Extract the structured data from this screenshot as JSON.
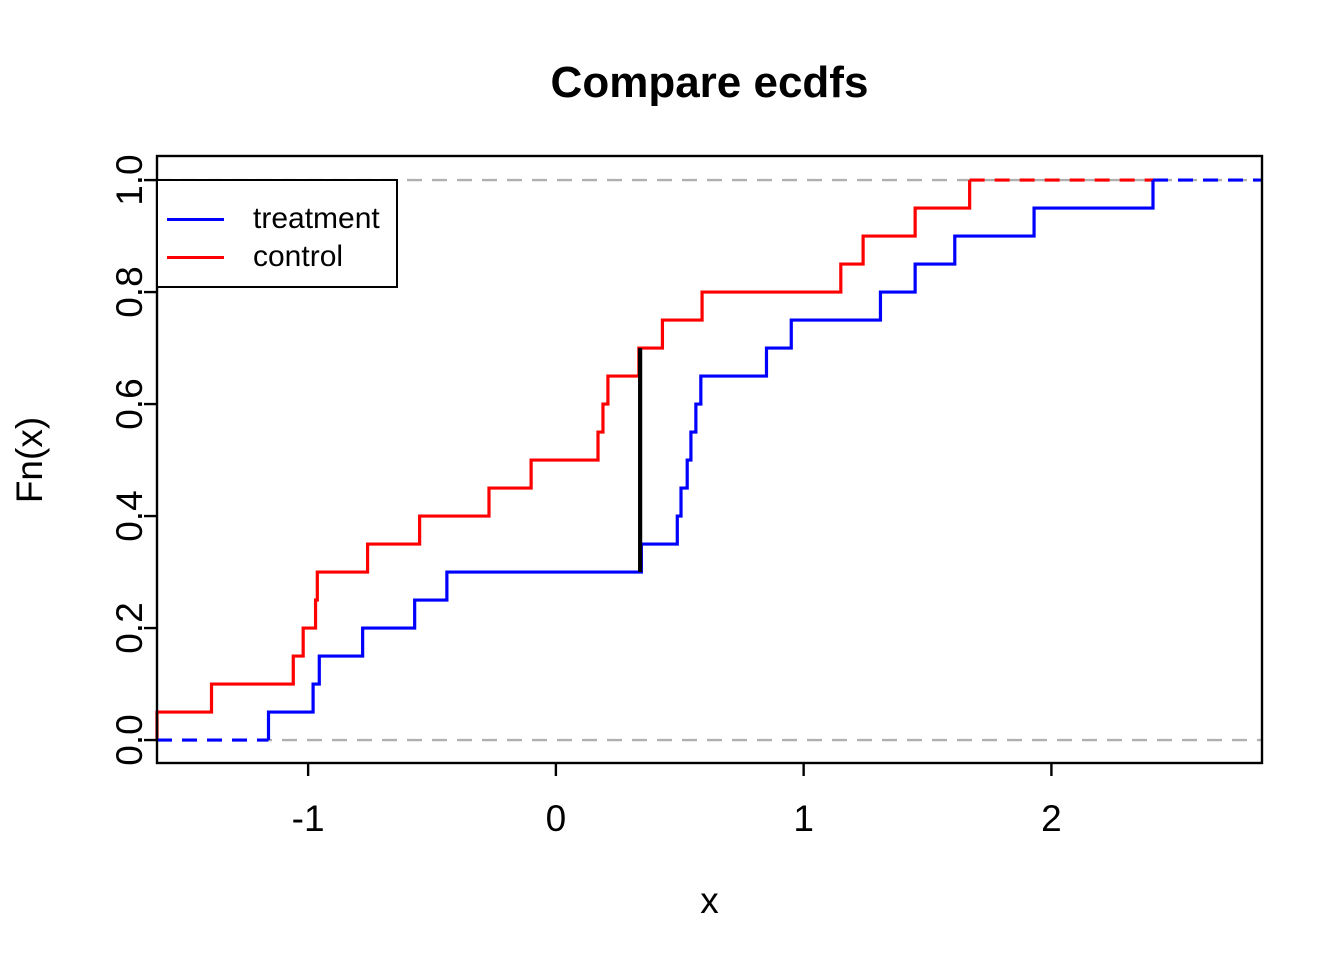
{
  "title": "Compare ecdfs",
  "legend": {
    "position": "topleft",
    "items": [
      {
        "label": "treatment",
        "color": "#0000ff"
      },
      {
        "label": "control",
        "color": "#ff0000"
      }
    ]
  },
  "chart_data": {
    "type": "line",
    "subtype": "ecdf-step",
    "title": "Compare ecdfs",
    "xlabel": "x",
    "ylabel": "Fn(x)",
    "xlim": [
      -1.61,
      2.85
    ],
    "ylim": [
      -0.041,
      1.043
    ],
    "grid": "off",
    "xticks": {
      "values": [
        -1,
        0,
        1,
        2
      ],
      "labels": [
        "-1",
        "0",
        "1",
        "2"
      ]
    },
    "yticks": {
      "values": [
        0,
        0.2,
        0.4,
        0.6,
        0.8,
        1.0
      ],
      "labels": [
        "0.0",
        "0.2",
        "0.4",
        "0.6",
        "0.8",
        "1.0"
      ]
    },
    "reference_lines": {
      "horizontal": [
        0,
        1
      ],
      "color": "#b0b0b0",
      "style": "dashed"
    },
    "ks_line": {
      "x": 0.34,
      "y_from": 0.3,
      "y_to": 0.7,
      "color": "#000000"
    },
    "series": [
      {
        "name": "control",
        "color": "#ff0000",
        "n": 20,
        "step": 0.05,
        "values": [
          -1.61,
          -1.39,
          -1.06,
          -1.02,
          -0.97,
          -0.963,
          -0.76,
          -0.55,
          -0.27,
          -0.1,
          0.17,
          0.19,
          0.21,
          0.335,
          0.43,
          0.59,
          1.15,
          1.24,
          1.45,
          1.67
        ],
        "right_extension_to": 2.41
      },
      {
        "name": "treatment",
        "color": "#0000ff",
        "n": 20,
        "step": 0.05,
        "values": [
          -1.16,
          -0.98,
          -0.955,
          -0.78,
          -0.57,
          -0.44,
          0.345,
          0.49,
          0.505,
          0.53,
          0.545,
          0.565,
          0.585,
          0.85,
          0.95,
          1.31,
          1.45,
          1.61,
          1.93,
          2.41
        ],
        "left_extension_from": -1.61,
        "right_extension_to": 2.85
      }
    ]
  }
}
